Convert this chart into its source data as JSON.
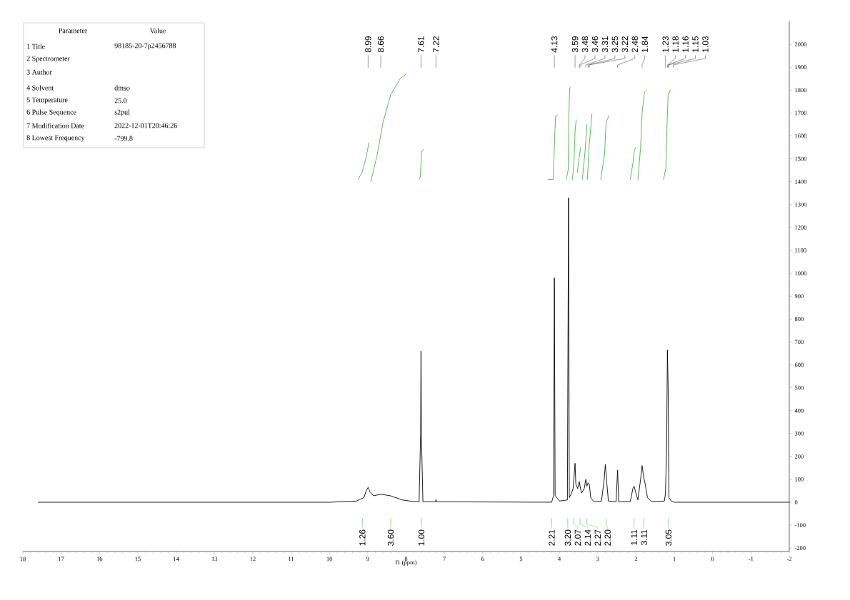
{
  "chart_data": {
    "type": "line",
    "xlabel": "f1 (ppm)",
    "xlim": [
      18,
      -2
    ],
    "xticks": [
      18,
      17,
      16,
      15,
      14,
      13,
      12,
      11,
      10,
      9,
      8,
      7,
      6,
      5,
      4,
      3,
      2,
      1,
      0,
      -1,
      -2
    ],
    "ylim": [
      -215,
      2100
    ],
    "yticks": [
      -200,
      -100,
      0,
      100,
      200,
      300,
      400,
      500,
      600,
      700,
      800,
      900,
      1000,
      1100,
      1200,
      1300,
      1400,
      1500,
      1600,
      1700,
      1800,
      1900,
      2000
    ],
    "series": [
      {
        "color": "#000000",
        "x": [
          17.6,
          10,
          9.3,
          9.1,
          9.04,
          8.99,
          8.94,
          8.85,
          8.66,
          8.4,
          8.1,
          7.8,
          7.66,
          7.62,
          7.61,
          7.6,
          7.56,
          7.23,
          7.22,
          7.21,
          4.2,
          4.15,
          4.13,
          4.11,
          4.0,
          3.79,
          3.76,
          3.74,
          3.68,
          3.64,
          3.59,
          3.57,
          3.52,
          3.48,
          3.46,
          3.42,
          3.35,
          3.31,
          3.28,
          3.25,
          3.22,
          3.18,
          3.1,
          2.9,
          2.83,
          2.8,
          2.77,
          2.72,
          2.52,
          2.48,
          2.45,
          2.15,
          2.08,
          2.05,
          2.01,
          1.95,
          1.88,
          1.84,
          1.8,
          1.76,
          1.7,
          1.6,
          1.26,
          1.23,
          1.2,
          1.18,
          1.16,
          1.15,
          1.14,
          1.08,
          1.03,
          1.0,
          -2
        ],
        "values": [
          0,
          0,
          5,
          20,
          50,
          65,
          45,
          28,
          35,
          28,
          10,
          3,
          2,
          300,
          660,
          300,
          2,
          2,
          12,
          2,
          0,
          30,
          980,
          30,
          5,
          10,
          1330,
          20,
          40,
          60,
          170,
          80,
          60,
          90,
          70,
          40,
          60,
          100,
          70,
          85,
          80,
          20,
          2,
          5,
          100,
          165,
          100,
          5,
          2,
          140,
          2,
          3,
          60,
          70,
          45,
          10,
          100,
          160,
          110,
          80,
          20,
          3,
          5,
          40,
          250,
          665,
          500,
          250,
          20,
          5,
          3,
          0,
          0
        ]
      },
      {
        "color": "#4caf50",
        "x": [
          9.25,
          9.15,
          9.05,
          8.97,
          8.95,
          8.92,
          8.75,
          8.6,
          8.4,
          8.15,
          8.0,
          7.8,
          7.66,
          7.63,
          7.61,
          7.59,
          7.54,
          7.5,
          4.3,
          4.16,
          4.13,
          4.1,
          4.05,
          3.9,
          3.82,
          3.77,
          3.75,
          3.73,
          3.7,
          3.68,
          3.66,
          3.62,
          3.59,
          3.56,
          3.54,
          3.53,
          3.48,
          3.44,
          3.42,
          3.4,
          3.33,
          3.28,
          3.275,
          3.27,
          3.22,
          3.15,
          3.0,
          2.92,
          2.82,
          2.78,
          2.7,
          2.5,
          2.15,
          2.08,
          2.04,
          2.0,
          1.97,
          1.95,
          1.88,
          1.84,
          1.78,
          1.72,
          1.5,
          1.28,
          1.22,
          1.19,
          1.16,
          1.1
        ],
        "values": [
          1410,
          1440,
          1500,
          1570,
          null,
          1400,
          1520,
          1660,
          1780,
          1850,
          1870,
          null,
          1410,
          1420,
          1480,
          1535,
          1540,
          null,
          1410,
          1410,
          1550,
          1685,
          1690,
          null,
          1410,
          1450,
          1700,
          1810,
          1815,
          null,
          1410,
          1480,
          1620,
          1670,
          null,
          1440,
          1510,
          1550,
          null,
          1410,
          1530,
          1650,
          null,
          1410,
          1560,
          1695,
          null,
          1410,
          1520,
          1660,
          1690,
          null,
          1410,
          1480,
          1540,
          1550,
          null,
          1410,
          1550,
          1700,
          1790,
          1800,
          null,
          1410,
          1460,
          1650,
          1780,
          1800
        ]
      }
    ],
    "annotations": [
      "Parameter",
      "Value",
      "1 Title",
      "98185-20-7p2456788",
      "2 Spectrometer",
      "3 Author",
      "4 Solvent",
      "dmso",
      "5 Temperature",
      "25.0",
      "6 Pulse Sequence",
      "s2pul",
      "7 Modification Date",
      "2022-12-01T20:46:26",
      "8 Lowest Frequency",
      "-799.8",
      {
        "text": "8.99",
        "x": 8.99
      },
      {
        "text": "8.66",
        "x": 8.66
      },
      {
        "text": "7.61",
        "x": 7.61
      },
      {
        "text": "7.22",
        "x": 7.22
      },
      {
        "text": "4.13",
        "x": 4.13
      },
      {
        "text": "3.59",
        "x": 3.59
      },
      {
        "text": "3.48",
        "x": 3.48
      },
      {
        "text": "3.46",
        "x": 3.46
      },
      {
        "text": "3.31",
        "x": 3.31
      },
      {
        "text": "3.25",
        "x": 3.25
      },
      {
        "text": "3.22",
        "x": 3.22
      },
      {
        "text": "2.48",
        "x": 2.48
      },
      {
        "text": "1.84",
        "x": 1.84
      },
      {
        "text": "1.23",
        "x": 1.23
      },
      {
        "text": "1.18",
        "x": 1.18
      },
      {
        "text": "1.16",
        "x": 1.16
      },
      {
        "text": "1.15",
        "x": 1.15
      },
      {
        "text": "1.03",
        "x": 1.03
      },
      {
        "text": "1.26",
        "x": 9.14
      },
      {
        "text": "3.60",
        "x": 8.4
      },
      {
        "text": "1.00",
        "x": 7.6
      },
      {
        "text": "2.21",
        "x": 4.2
      },
      {
        "text": "3.20",
        "x": 3.78
      },
      {
        "text": "2.07",
        "x": 3.62
      },
      {
        "text": "2.14",
        "x": 3.46
      },
      {
        "text": "2.27",
        "x": 3.28
      },
      {
        "text": "2.20",
        "x": 2.78
      },
      {
        "text": "1.11",
        "x": 2.05
      },
      {
        "text": "3.11",
        "x": 1.8
      },
      {
        "text": "3.05",
        "x": 1.15
      }
    ]
  }
}
